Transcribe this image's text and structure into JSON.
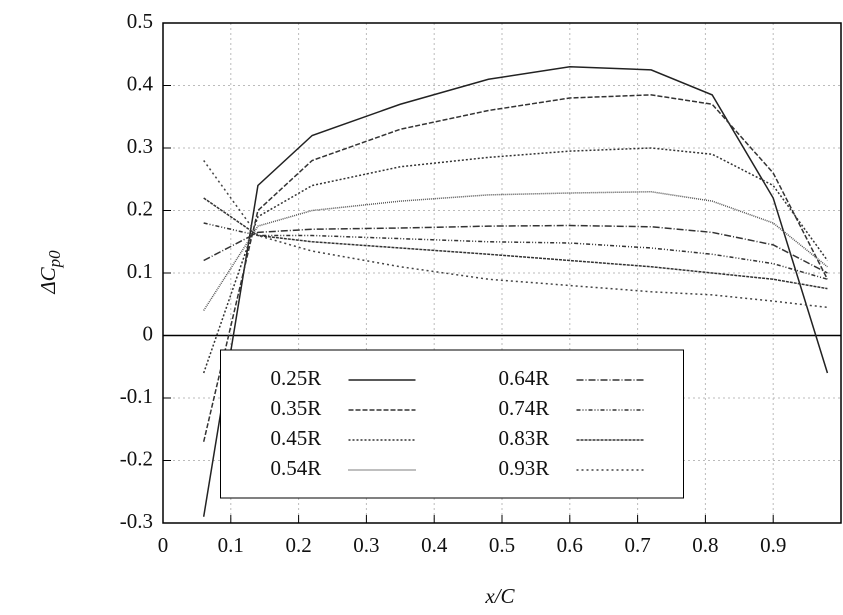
{
  "chart_data": {
    "type": "line",
    "x_label": "x/C",
    "y_label": {
      "main": "ΔC",
      "sub": "p0"
    },
    "x": [
      0.06,
      0.14,
      0.22,
      0.35,
      0.48,
      0.6,
      0.72,
      0.81,
      0.9,
      0.98
    ],
    "series": [
      {
        "name": "0.25R",
        "color": "#222222",
        "dash": "none",
        "values": [
          -0.29,
          0.24,
          0.32,
          0.37,
          0.41,
          0.43,
          0.425,
          0.385,
          0.22,
          -0.06
        ]
      },
      {
        "name": "0.35R",
        "color": "#333333",
        "dash": "5,2",
        "values": [
          -0.17,
          0.2,
          0.28,
          0.33,
          0.36,
          0.38,
          0.385,
          0.37,
          0.26,
          0.09
        ]
      },
      {
        "name": "0.45R",
        "color": "#333333",
        "dash": "2,2",
        "values": [
          -0.06,
          0.19,
          0.24,
          0.27,
          0.285,
          0.295,
          0.3,
          0.29,
          0.24,
          0.12
        ]
      },
      {
        "name": "0.54R",
        "color": "#555555",
        "dash": "1,1",
        "values": [
          0.04,
          0.175,
          0.2,
          0.215,
          0.225,
          0.228,
          0.23,
          0.215,
          0.18,
          0.11
        ]
      },
      {
        "name": "0.64R",
        "color": "#333333",
        "dash": "7,2,1,2",
        "values": [
          0.12,
          0.165,
          0.17,
          0.172,
          0.175,
          0.176,
          0.174,
          0.165,
          0.145,
          0.1
        ]
      },
      {
        "name": "0.74R",
        "color": "#333333",
        "dash": "4,2,1,2,1,2",
        "values": [
          0.18,
          0.16,
          0.16,
          0.155,
          0.15,
          0.148,
          0.14,
          0.13,
          0.115,
          0.09
        ]
      },
      {
        "name": "0.83R",
        "color": "#333333",
        "dash": "3,1",
        "values": [
          0.22,
          0.16,
          0.15,
          0.14,
          0.13,
          0.12,
          0.11,
          0.1,
          0.09,
          0.075
        ]
      },
      {
        "name": "0.93R",
        "color": "#444444",
        "dash": "2,3",
        "values": [
          0.28,
          0.16,
          0.135,
          0.11,
          0.09,
          0.08,
          0.07,
          0.065,
          0.055,
          0.045
        ]
      }
    ],
    "xlim": [
      0,
      1
    ],
    "xticks": [
      0,
      0.1,
      0.2,
      0.3,
      0.4,
      0.5,
      0.6,
      0.7,
      0.8,
      0.9
    ],
    "ylim": [
      -0.3,
      0.5
    ],
    "yticks": [
      -0.3,
      -0.2,
      -0.1,
      0,
      0.1,
      0.2,
      0.3,
      0.4,
      0.5
    ],
    "grid": true,
    "legend": "lower center"
  }
}
